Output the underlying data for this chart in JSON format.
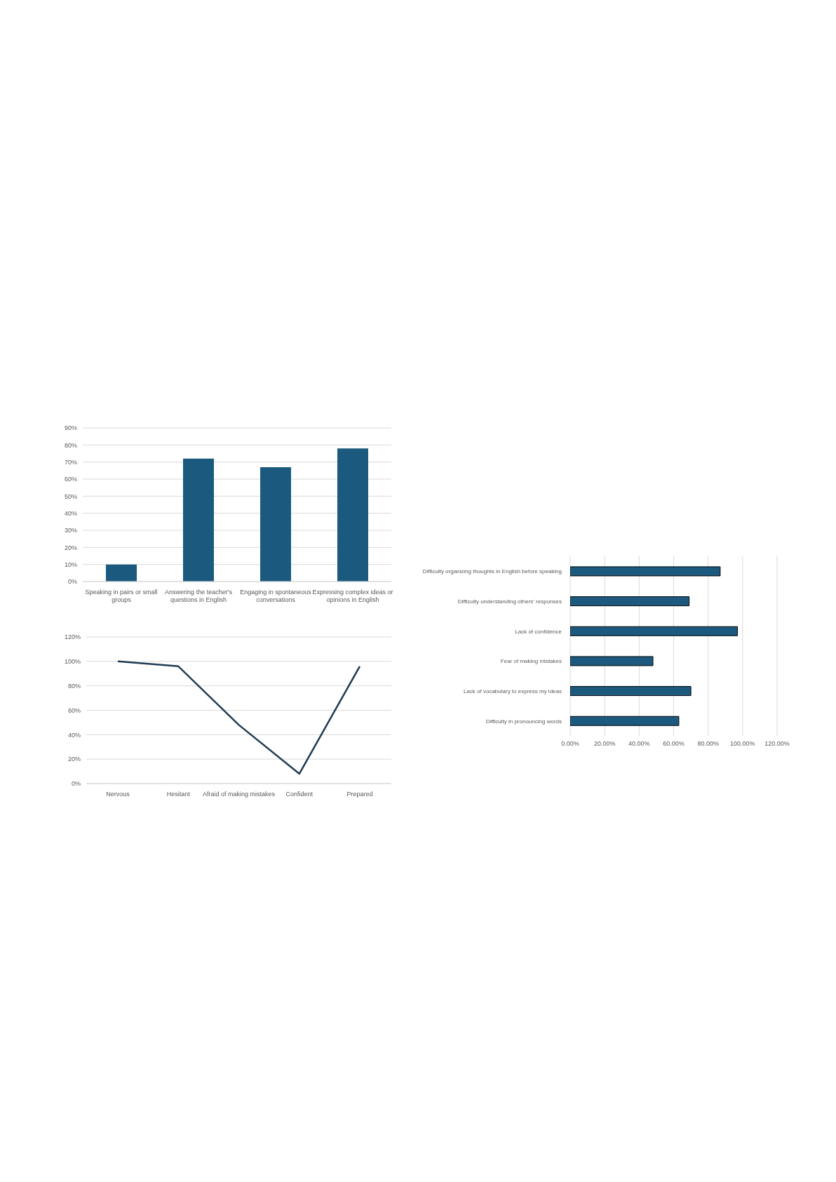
{
  "chart_data": [
    {
      "type": "bar",
      "categories": [
        "Speaking in pairs or small groups",
        "Answering the teacher's questions in English",
        "Engaging in spontaneous conversations",
        "Expressing complex ideas or opinions in English"
      ],
      "values": [
        10,
        72,
        67,
        78
      ],
      "color": "#1b5a7e",
      "ylim": [
        0,
        90
      ],
      "yticks": [
        {
          "value": 0,
          "label": "0%"
        },
        {
          "value": 10,
          "label": "10%"
        },
        {
          "value": 20,
          "label": "20%"
        },
        {
          "value": 30,
          "label": "30%"
        },
        {
          "value": 40,
          "label": "40%"
        },
        {
          "value": 50,
          "label": "50%"
        },
        {
          "value": 60,
          "label": "60%"
        },
        {
          "value": 70,
          "label": "70%"
        },
        {
          "value": 80,
          "label": "80%"
        },
        {
          "value": 90,
          "label": "90%"
        }
      ],
      "grid": "y"
    },
    {
      "type": "line",
      "categories": [
        "Nervous",
        "Hesitant",
        "Afraid of making mistakes",
        "Confident",
        "Prepared"
      ],
      "values": [
        100,
        96,
        48,
        8,
        96
      ],
      "color": "#1f3b52",
      "marker": "none",
      "ylim": [
        0,
        120
      ],
      "yticks": [
        {
          "value": 0,
          "label": "0%"
        },
        {
          "value": 20,
          "label": "20%"
        },
        {
          "value": 40,
          "label": "40%"
        },
        {
          "value": 60,
          "label": "60%"
        },
        {
          "value": 80,
          "label": "80%"
        },
        {
          "value": 100,
          "label": "100%"
        },
        {
          "value": 120,
          "label": "120%"
        }
      ],
      "grid": "y"
    },
    {
      "type": "bar",
      "orientation": "horizontal",
      "categories": [
        "Difficulty organizing thoughts in English before speaking",
        "Difficulty understanding others' responses",
        "Lack of confidence",
        "Fear of making mistakes",
        "Lack of vocabulary to express my ideas",
        "Difficulty in pronouncing words"
      ],
      "values": [
        87,
        69,
        97,
        48,
        70,
        63
      ],
      "color": "#1b5a7e",
      "xlim": [
        0,
        120
      ],
      "xticks": [
        {
          "value": 0,
          "label": "0.00%"
        },
        {
          "value": 20,
          "label": "20.00%"
        },
        {
          "value": 40,
          "label": "40.00%"
        },
        {
          "value": 60,
          "label": "60.00%"
        },
        {
          "value": 80,
          "label": "80.00%"
        },
        {
          "value": 100,
          "label": "100.00%"
        },
        {
          "value": 120,
          "label": "120.00%"
        }
      ],
      "grid": "x"
    }
  ]
}
